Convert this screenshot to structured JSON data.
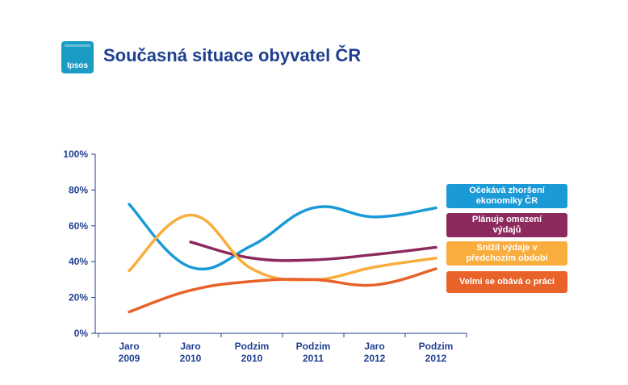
{
  "header": {
    "logo_text": "Ipsos",
    "title": "Současná situace obyvatel ČR"
  },
  "colors": {
    "title": "#1f3f8f",
    "logo": "#1a9cc4",
    "axis": "#1f3f8f"
  },
  "chart_data": {
    "type": "line",
    "categories": [
      [
        "Jaro",
        "2009"
      ],
      [
        "Jaro",
        "2010"
      ],
      [
        "Podzim",
        "2010"
      ],
      [
        "Podzim",
        "2011"
      ],
      [
        "Jaro",
        "2012"
      ],
      [
        "Podzim",
        "2012"
      ]
    ],
    "yticks": [
      "0%",
      "20%",
      "40%",
      "60%",
      "80%",
      "100%"
    ],
    "ylim": [
      0,
      100
    ],
    "grid": false,
    "legend_position": "right",
    "series": [
      {
        "name": "Očekává zhoršení ekonomiky ČR",
        "color": "#1a9ad6",
        "values": [
          72,
          37,
          49,
          70,
          65,
          70
        ],
        "label_lines": [
          "Očekává zhoršení",
          "ekonomiky ČR"
        ]
      },
      {
        "name": "Plánuje omezení výdajů",
        "color": "#8c2a5e",
        "values": [
          null,
          51,
          42,
          41,
          44,
          48
        ],
        "label_lines": [
          "Plánuje omezení",
          "výdajů"
        ]
      },
      {
        "name": "Snížil výdaje v předchozím období",
        "color": "#f9ad3c",
        "values": [
          35,
          66,
          36,
          30,
          37,
          42
        ],
        "label_lines": [
          "Snížil výdaje v",
          "předchozím období"
        ]
      },
      {
        "name": "Velmi se obává o práci",
        "color": "#e8622a",
        "values": [
          12,
          24,
          29,
          30,
          27,
          36
        ],
        "label_lines": [
          "Velmi se obává o práci"
        ]
      }
    ]
  }
}
